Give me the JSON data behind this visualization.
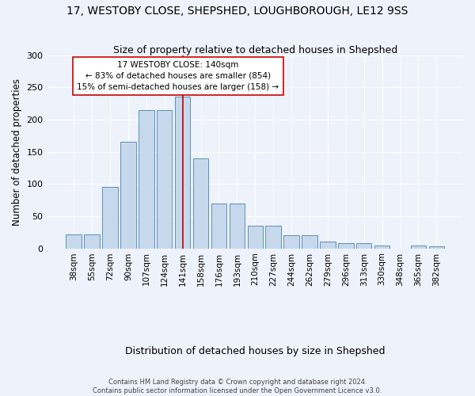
{
  "title": "17, WESTOBY CLOSE, SHEPSHED, LOUGHBOROUGH, LE12 9SS",
  "subtitle": "Size of property relative to detached houses in Shepshed",
  "xlabel_bottom": "Distribution of detached houses by size in Shepshed",
  "ylabel": "Number of detached properties",
  "categories": [
    "38sqm",
    "55sqm",
    "72sqm",
    "90sqm",
    "107sqm",
    "124sqm",
    "141sqm",
    "158sqm",
    "176sqm",
    "193sqm",
    "210sqm",
    "227sqm",
    "244sqm",
    "262sqm",
    "279sqm",
    "296sqm",
    "313sqm",
    "330sqm",
    "348sqm",
    "365sqm",
    "382sqm"
  ],
  "values": [
    22,
    22,
    95,
    165,
    215,
    215,
    235,
    140,
    70,
    70,
    35,
    35,
    20,
    20,
    10,
    8,
    8,
    5,
    0,
    4,
    3
  ],
  "bar_color": "#c6d9ec",
  "bar_edge_color": "#5b8fbe",
  "vline_x_index": 6,
  "vline_color": "#cc0000",
  "annotation_text": "17 WESTOBY CLOSE: 140sqm\n← 83% of detached houses are smaller (854)\n15% of semi-detached houses are larger (158) →",
  "annotation_box_color": "white",
  "annotation_box_edge_color": "#cc0000",
  "ylim": [
    0,
    300
  ],
  "yticks": [
    0,
    50,
    100,
    150,
    200,
    250,
    300
  ],
  "title_fontsize": 10,
  "subtitle_fontsize": 9,
  "axis_label_fontsize": 8.5,
  "tick_fontsize": 8,
  "footer_text": "Contains HM Land Registry data © Crown copyright and database right 2024.\nContains public sector information licensed under the Open Government Licence v3.0.",
  "background_color": "#eef2fb",
  "plot_bg_color": "#eef2fb",
  "grid_color": "white",
  "annotation_fontsize": 7.5
}
